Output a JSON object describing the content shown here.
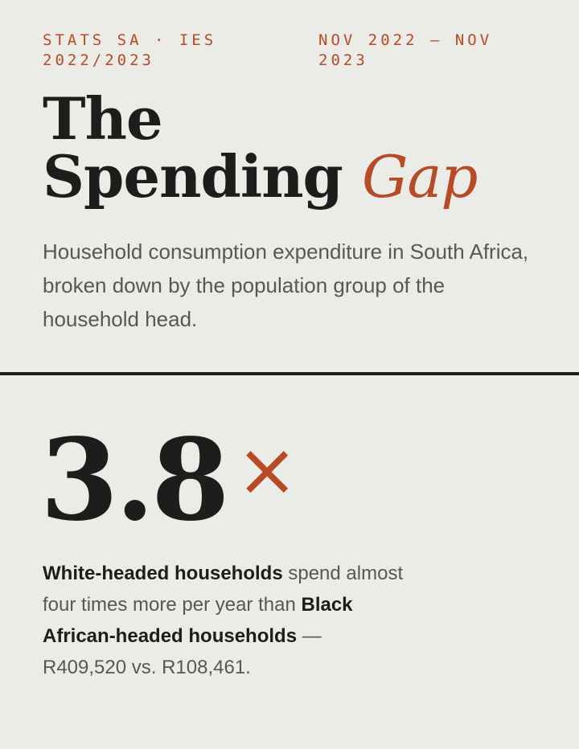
{
  "header": {
    "source": "STATS SA · IES 2022/2023",
    "period": "NOV 2022 – NOV 2023"
  },
  "title": {
    "lines": [
      "The",
      "Spending"
    ],
    "accent": "Gap"
  },
  "subtitle": "Household consumption expenditure in South Africa, broken down by the population group of the household head.",
  "stat": {
    "value": "3.8",
    "symbol": "×"
  },
  "description": {
    "group_a": "White-headed households",
    "middle": "spend almost four times more per year than",
    "group_b": "Black African-headed households",
    "tail": "— R409,520 vs. R108,461."
  }
}
